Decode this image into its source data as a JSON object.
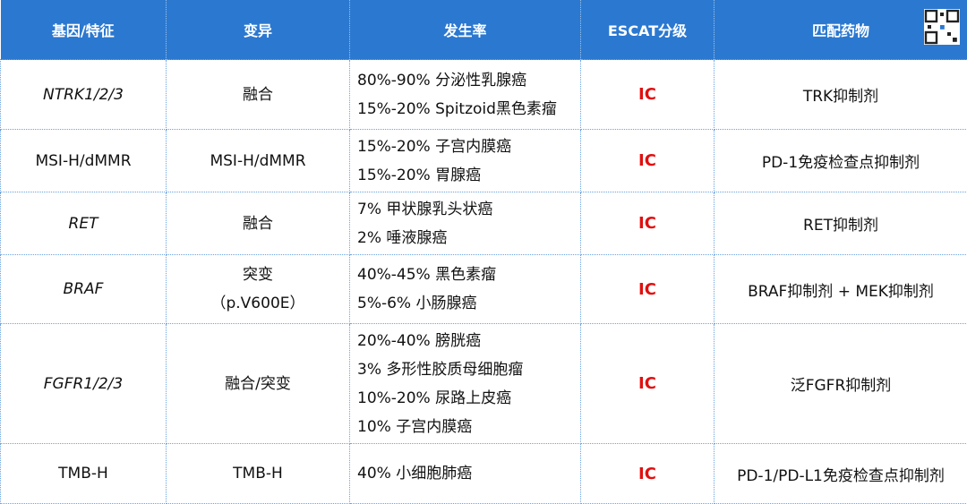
{
  "table": {
    "columns": [
      "基因/特征",
      "变异",
      "发生率",
      "ESCAT分级",
      "匹配药物"
    ],
    "rows": [
      {
        "gene": "NTRK1/2/3",
        "variant": [
          "融合"
        ],
        "incidence": [
          "80%-90% 分泌性乳腺癌",
          "15%-20% Spitzoid黑色素瘤"
        ],
        "escat": "IC",
        "drug": "TRK抑制剂"
      },
      {
        "gene": "MSI-H/dMMR",
        "variant": [
          "MSI-H/dMMR"
        ],
        "incidence": [
          "15%-20% 子宫内膜癌",
          "15%-20% 胃腺癌"
        ],
        "escat": "IC",
        "drug": "PD-1免疫检查点抑制剂"
      },
      {
        "gene": "RET",
        "variant": [
          "融合"
        ],
        "incidence": [
          "7% 甲状腺乳头状癌",
          "2% 唾液腺癌"
        ],
        "escat": "IC",
        "drug": "RET抑制剂"
      },
      {
        "gene": "BRAF",
        "variant": [
          "突变",
          "（p.V600E）"
        ],
        "incidence": [
          "40%-45% 黑色素瘤",
          "5%-6% 小肠腺癌"
        ],
        "escat": "IC",
        "drug": "BRAF抑制剂 + MEK抑制剂"
      },
      {
        "gene": "FGFR1/2/3",
        "variant": [
          "融合/突变"
        ],
        "incidence": [
          "20%-40% 膀胱癌",
          "3% 多形性胶质母细胞瘤",
          "10%-20% 尿路上皮癌",
          "10% 子宫内膜癌"
        ],
        "escat": "IC",
        "drug": "泛FGFR抑制剂"
      },
      {
        "gene": "TMB-H",
        "variant": [
          "TMB-H"
        ],
        "incidence": [
          "40% 小细胞肺癌"
        ],
        "escat": "IC",
        "drug": "PD-1/PD-L1免疫检查点抑制剂"
      }
    ]
  }
}
